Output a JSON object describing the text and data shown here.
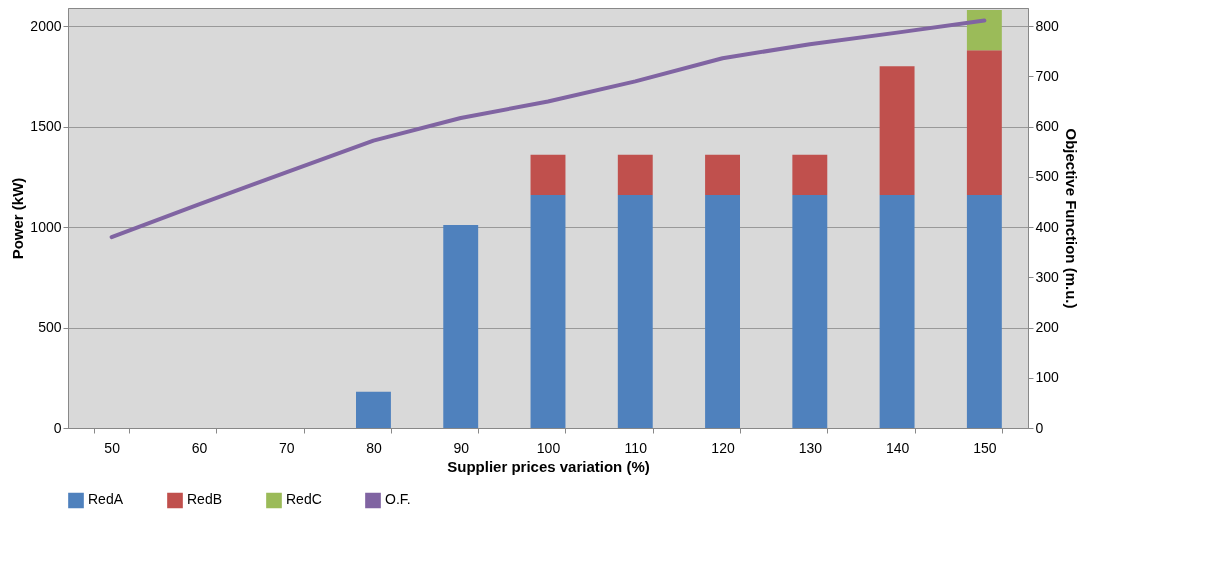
{
  "chart_data": {
    "type": "bar",
    "stacked": true,
    "xlabel": "Supplier prices variation (%)",
    "ylabel": "Power (kW)",
    "y2label": "Objective Function (m.u.)",
    "categories": [
      "50",
      "60",
      "70",
      "80",
      "90",
      "100",
      "110",
      "120",
      "130",
      "140",
      "150"
    ],
    "series": [
      {
        "name": "RedA",
        "color": "#4f81bd",
        "values": [
          0,
          0,
          0,
          180,
          1010,
          1160,
          1160,
          1160,
          1160,
          1160,
          1160
        ]
      },
      {
        "name": "RedB",
        "color": "#c0504d",
        "values": [
          0,
          0,
          0,
          0,
          0,
          200,
          200,
          200,
          200,
          640,
          720
        ]
      },
      {
        "name": "RedC",
        "color": "#9bbb59",
        "values": [
          0,
          0,
          0,
          0,
          0,
          0,
          0,
          0,
          0,
          0,
          200
        ]
      },
      {
        "name": "O.F.",
        "color": "#8064a2",
        "type": "line",
        "axis": "y2",
        "values": [
          380,
          445,
          509,
          572,
          617,
          650,
          690,
          736,
          764,
          787,
          811
        ]
      }
    ],
    "ylim": [
      0,
      2090
    ],
    "yticks": [
      0,
      500,
      1000,
      1500,
      2000
    ],
    "y2lim": [
      0,
      836
    ],
    "y2ticks": [
      0,
      100,
      200,
      300,
      400,
      500,
      600,
      700,
      800
    ],
    "grid": "y",
    "legend": "bottom"
  }
}
